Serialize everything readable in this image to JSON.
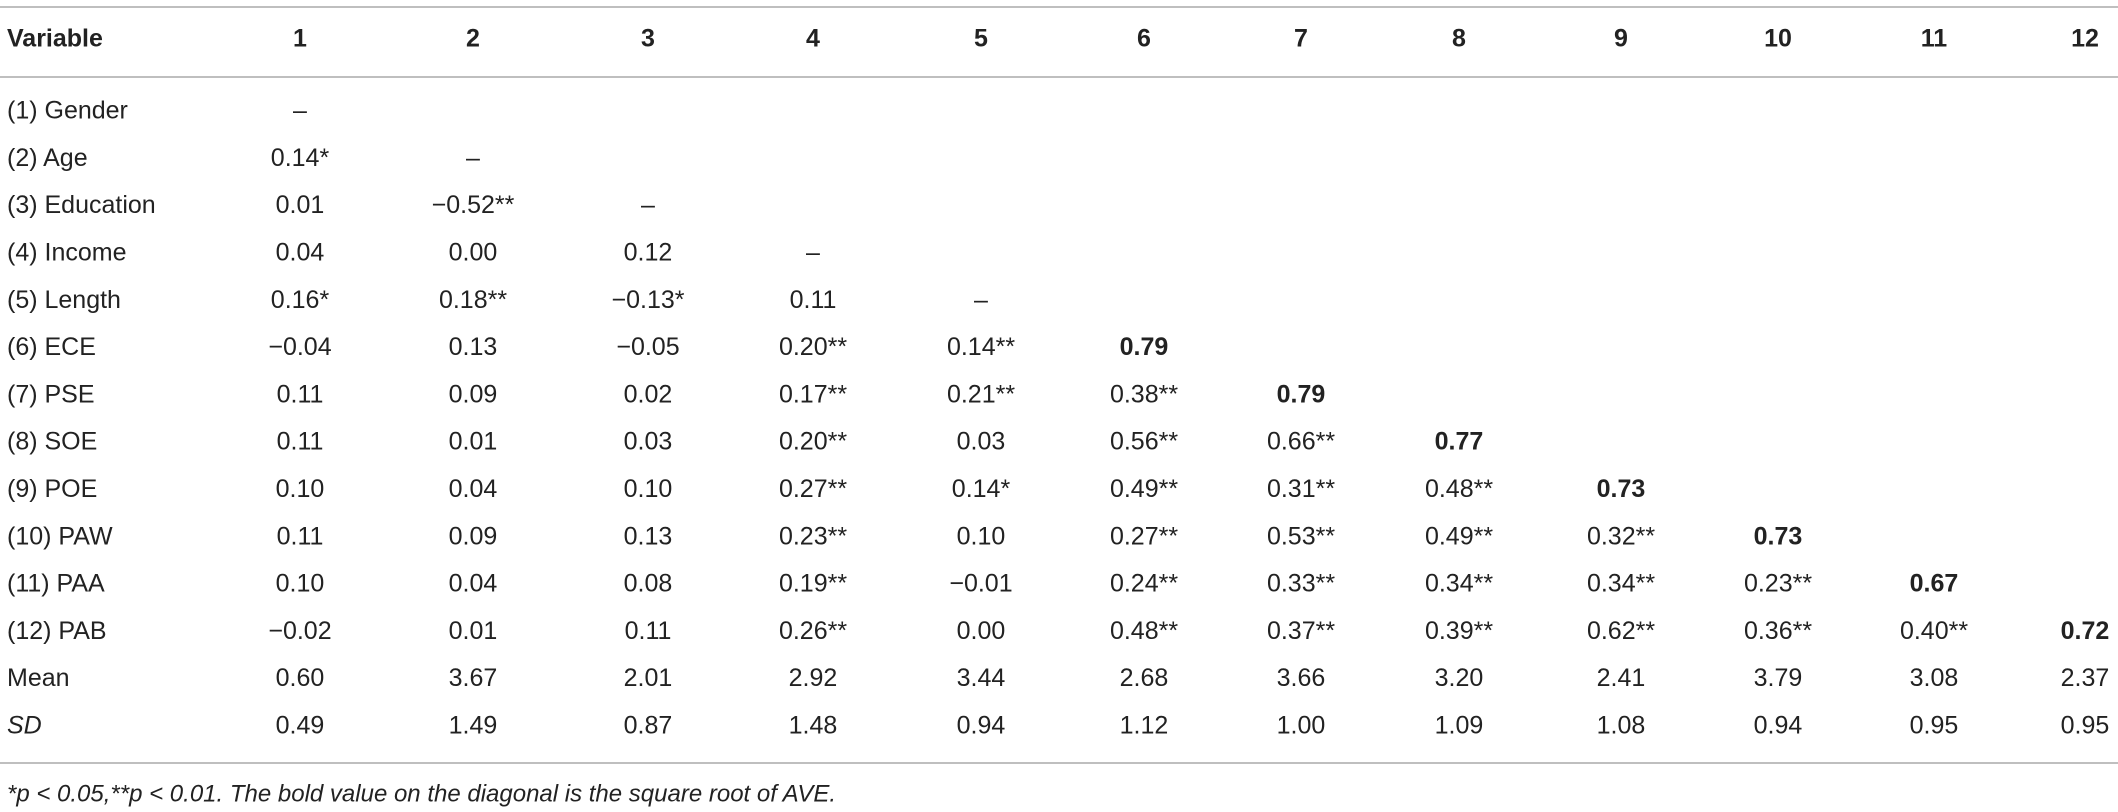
{
  "table": {
    "header": [
      "Variable",
      "1",
      "2",
      "3",
      "4",
      "5",
      "6",
      "7",
      "8",
      "9",
      "10",
      "11",
      "12"
    ],
    "rows": [
      [
        "(1) Gender",
        "–"
      ],
      [
        "(2) Age",
        "0.14*",
        "–"
      ],
      [
        "(3) Education",
        "0.01",
        "−0.52**",
        "–"
      ],
      [
        "(4) Income",
        "0.04",
        "0.00",
        "0.12",
        "–"
      ],
      [
        "(5) Length",
        "0.16*",
        "0.18**",
        "−0.13*",
        "0.11",
        "–"
      ],
      [
        "(6) ECE",
        "−0.04",
        "0.13",
        "−0.05",
        "0.20**",
        "0.14**",
        "0.79"
      ],
      [
        "(7) PSE",
        "0.11",
        "0.09",
        "0.02",
        "0.17**",
        "0.21**",
        "0.38**",
        "0.79"
      ],
      [
        "(8) SOE",
        "0.11",
        "0.01",
        "0.03",
        "0.20**",
        "0.03",
        "0.56**",
        "0.66**",
        "0.77"
      ],
      [
        "(9) POE",
        "0.10",
        "0.04",
        "0.10",
        "0.27**",
        "0.14*",
        "0.49**",
        "0.31**",
        "0.48**",
        "0.73"
      ],
      [
        "(10) PAW",
        "0.11",
        "0.09",
        "0.13",
        "0.23**",
        "0.10",
        "0.27**",
        "0.53**",
        "0.49**",
        "0.32**",
        "0.73"
      ],
      [
        "(11) PAA",
        "0.10",
        "0.04",
        "0.08",
        "0.19**",
        "−0.01",
        "0.24**",
        "0.33**",
        "0.34**",
        "0.34**",
        "0.23**",
        "0.67"
      ],
      [
        "(12) PAB",
        "−0.02",
        "0.01",
        "0.11",
        "0.26**",
        "0.00",
        "0.48**",
        "0.37**",
        "0.39**",
        "0.62**",
        "0.36**",
        "0.40**",
        "0.72"
      ],
      [
        "Mean",
        "0.60",
        "3.67",
        "2.01",
        "2.92",
        "3.44",
        "2.68",
        "3.66",
        "3.20",
        "2.41",
        "3.79",
        "3.08",
        "2.37"
      ],
      [
        "SD",
        "0.49",
        "1.49",
        "0.87",
        "1.48",
        "0.94",
        "1.12",
        "1.00",
        "1.09",
        "1.08",
        "0.94",
        "0.95",
        "0.95"
      ]
    ],
    "footnote": "*p < 0.05,**p < 0.01. The bold value on the diagonal is the square root of AVE."
  }
}
